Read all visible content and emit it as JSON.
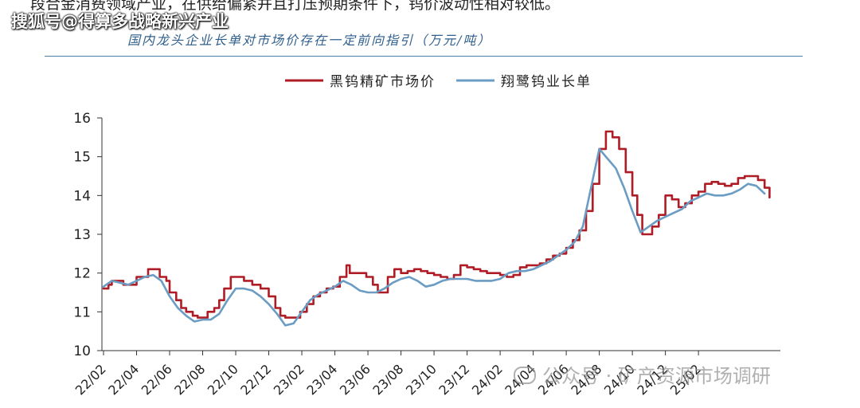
{
  "page": {
    "top_text": "段合金消费领域产业，在供给偏紧并且打压预期条件下，钨价波动性相对较低。",
    "watermark_top": "搜狐号@得算多战略新兴产业",
    "subtitle": "国内龙头企业长单对市场价存在一定前向指引（万元/吨）",
    "watermark_bottom": "公众号 · 矿产资源市场调研"
  },
  "chart_data": {
    "type": "line",
    "title": "",
    "ylim": [
      10,
      16
    ],
    "yticks": [
      "10",
      "11",
      "12",
      "13",
      "14",
      "15",
      "16"
    ],
    "x_tick_labels": [
      "22/02",
      "22/04",
      "22/06",
      "22/08",
      "22/10",
      "22/12",
      "23/02",
      "23/04",
      "23/06",
      "23/08",
      "23/10",
      "23/12",
      "24/02",
      "24/04",
      "24/06",
      "24/08",
      "24/10",
      "24/12",
      "25/02"
    ],
    "x_range_months": [
      0,
      39
    ],
    "legend_position": "top",
    "grid": false,
    "series": [
      {
        "name": "黑钨精矿市场价",
        "color": "#b01c26",
        "style": "step",
        "points": [
          [
            0.0,
            11.6
          ],
          [
            0.3,
            11.7
          ],
          [
            0.5,
            11.8
          ],
          [
            1.0,
            11.8
          ],
          [
            1.2,
            11.7
          ],
          [
            1.8,
            11.7
          ],
          [
            2.0,
            11.9
          ],
          [
            2.5,
            11.9
          ],
          [
            2.7,
            12.1
          ],
          [
            3.2,
            12.1
          ],
          [
            3.4,
            11.9
          ],
          [
            3.8,
            11.8
          ],
          [
            4.0,
            11.5
          ],
          [
            4.4,
            11.3
          ],
          [
            4.7,
            11.1
          ],
          [
            5.0,
            11.0
          ],
          [
            5.4,
            10.9
          ],
          [
            5.7,
            10.85
          ],
          [
            6.0,
            10.85
          ],
          [
            6.3,
            11.0
          ],
          [
            6.7,
            11.1
          ],
          [
            7.0,
            11.3
          ],
          [
            7.3,
            11.6
          ],
          [
            7.7,
            11.9
          ],
          [
            8.2,
            11.9
          ],
          [
            8.5,
            11.8
          ],
          [
            9.0,
            11.7
          ],
          [
            9.5,
            11.6
          ],
          [
            10.0,
            11.4
          ],
          [
            10.4,
            11.1
          ],
          [
            10.7,
            10.9
          ],
          [
            11.0,
            10.85
          ],
          [
            11.5,
            10.85
          ],
          [
            11.9,
            11.0
          ],
          [
            12.3,
            11.2
          ],
          [
            12.7,
            11.4
          ],
          [
            13.1,
            11.5
          ],
          [
            13.5,
            11.6
          ],
          [
            13.9,
            11.65
          ],
          [
            14.3,
            11.9
          ],
          [
            14.7,
            12.2
          ],
          [
            14.9,
            12.0
          ],
          [
            15.5,
            12.0
          ],
          [
            15.9,
            11.9
          ],
          [
            16.3,
            11.7
          ],
          [
            16.6,
            11.5
          ],
          [
            16.8,
            11.5
          ],
          [
            17.2,
            11.9
          ],
          [
            17.6,
            12.1
          ],
          [
            18.0,
            12.0
          ],
          [
            18.4,
            12.05
          ],
          [
            18.8,
            12.1
          ],
          [
            19.2,
            12.05
          ],
          [
            19.6,
            12.0
          ],
          [
            20.0,
            11.95
          ],
          [
            20.4,
            11.9
          ],
          [
            20.8,
            11.85
          ],
          [
            21.2,
            11.95
          ],
          [
            21.6,
            12.2
          ],
          [
            22.0,
            12.15
          ],
          [
            22.4,
            12.1
          ],
          [
            22.8,
            12.05
          ],
          [
            23.2,
            12.0
          ],
          [
            23.6,
            12.0
          ],
          [
            24.0,
            11.95
          ],
          [
            24.4,
            11.9
          ],
          [
            24.8,
            11.95
          ],
          [
            25.2,
            12.15
          ],
          [
            25.6,
            12.2
          ],
          [
            26.0,
            12.2
          ],
          [
            26.4,
            12.25
          ],
          [
            26.8,
            12.35
          ],
          [
            27.2,
            12.45
          ],
          [
            27.6,
            12.5
          ],
          [
            28.0,
            12.65
          ],
          [
            28.4,
            12.85
          ],
          [
            28.8,
            13.1
          ],
          [
            29.2,
            13.6
          ],
          [
            29.6,
            14.3
          ],
          [
            30.0,
            15.2
          ],
          [
            30.4,
            15.65
          ],
          [
            30.8,
            15.5
          ],
          [
            31.2,
            15.2
          ],
          [
            31.6,
            14.6
          ],
          [
            32.0,
            14.0
          ],
          [
            32.3,
            13.5
          ],
          [
            32.6,
            13.0
          ],
          [
            32.9,
            13.0
          ],
          [
            33.2,
            13.2
          ],
          [
            33.6,
            13.5
          ],
          [
            34.0,
            14.0
          ],
          [
            34.4,
            13.9
          ],
          [
            34.8,
            13.7
          ],
          [
            35.2,
            13.8
          ],
          [
            35.6,
            14.0
          ],
          [
            36.0,
            14.1
          ],
          [
            36.4,
            14.3
          ],
          [
            36.8,
            14.35
          ],
          [
            37.2,
            14.3
          ],
          [
            37.6,
            14.25
          ],
          [
            38.0,
            14.3
          ],
          [
            38.4,
            14.45
          ],
          [
            38.8,
            14.5
          ],
          [
            39.2,
            14.5
          ],
          [
            39.6,
            14.4
          ],
          [
            40.0,
            14.2
          ],
          [
            40.3,
            13.95
          ]
        ]
      },
      {
        "name": "翔鹭钨业长单",
        "color": "#6a9cc4",
        "style": "smooth",
        "points": [
          [
            0.0,
            11.65
          ],
          [
            0.5,
            11.8
          ],
          [
            1.0,
            11.75
          ],
          [
            1.5,
            11.7
          ],
          [
            2.0,
            11.8
          ],
          [
            2.5,
            11.9
          ],
          [
            3.0,
            11.95
          ],
          [
            3.5,
            11.8
          ],
          [
            4.0,
            11.4
          ],
          [
            4.5,
            11.1
          ],
          [
            5.0,
            10.9
          ],
          [
            5.5,
            10.75
          ],
          [
            6.0,
            10.8
          ],
          [
            6.5,
            10.8
          ],
          [
            7.0,
            10.95
          ],
          [
            7.5,
            11.3
          ],
          [
            8.0,
            11.6
          ],
          [
            8.5,
            11.6
          ],
          [
            9.0,
            11.55
          ],
          [
            9.5,
            11.4
          ],
          [
            10.0,
            11.2
          ],
          [
            10.5,
            10.95
          ],
          [
            11.0,
            10.65
          ],
          [
            11.5,
            10.7
          ],
          [
            12.0,
            11.0
          ],
          [
            12.5,
            11.3
          ],
          [
            13.0,
            11.45
          ],
          [
            13.5,
            11.55
          ],
          [
            14.0,
            11.65
          ],
          [
            14.5,
            11.8
          ],
          [
            15.0,
            11.7
          ],
          [
            15.5,
            11.55
          ],
          [
            16.0,
            11.5
          ],
          [
            16.5,
            11.5
          ],
          [
            17.0,
            11.6
          ],
          [
            17.5,
            11.75
          ],
          [
            18.0,
            11.85
          ],
          [
            18.5,
            11.9
          ],
          [
            19.0,
            11.8
          ],
          [
            19.5,
            11.65
          ],
          [
            20.0,
            11.7
          ],
          [
            20.5,
            11.8
          ],
          [
            21.0,
            11.85
          ],
          [
            21.5,
            11.85
          ],
          [
            22.0,
            11.85
          ],
          [
            22.5,
            11.8
          ],
          [
            23.0,
            11.8
          ],
          [
            23.5,
            11.8
          ],
          [
            24.0,
            11.85
          ],
          [
            24.5,
            12.0
          ],
          [
            25.0,
            12.05
          ],
          [
            25.5,
            12.05
          ],
          [
            26.0,
            12.1
          ],
          [
            26.5,
            12.2
          ],
          [
            27.0,
            12.3
          ],
          [
            27.5,
            12.45
          ],
          [
            28.0,
            12.6
          ],
          [
            28.5,
            12.8
          ],
          [
            29.0,
            13.2
          ],
          [
            29.5,
            14.2
          ],
          [
            30.0,
            15.2
          ],
          [
            30.5,
            14.95
          ],
          [
            31.0,
            14.7
          ],
          [
            31.5,
            14.2
          ],
          [
            32.0,
            13.6
          ],
          [
            32.5,
            13.05
          ],
          [
            33.0,
            13.2
          ],
          [
            33.5,
            13.35
          ],
          [
            34.0,
            13.45
          ],
          [
            34.5,
            13.55
          ],
          [
            35.0,
            13.65
          ],
          [
            35.5,
            13.85
          ],
          [
            36.0,
            13.95
          ],
          [
            36.5,
            14.05
          ],
          [
            37.0,
            14.0
          ],
          [
            37.5,
            14.0
          ],
          [
            38.0,
            14.05
          ],
          [
            38.5,
            14.15
          ],
          [
            39.0,
            14.3
          ],
          [
            39.5,
            14.25
          ],
          [
            40.0,
            14.05
          ]
        ]
      }
    ]
  }
}
